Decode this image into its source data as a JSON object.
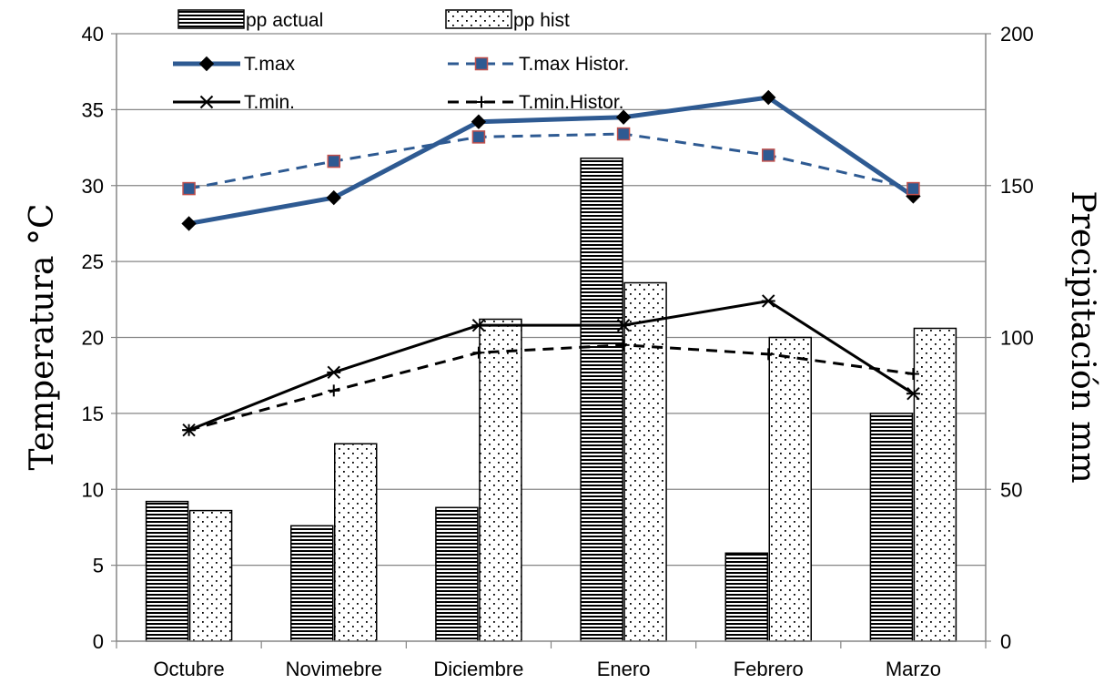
{
  "chart_data": {
    "type": "bar",
    "categories": [
      "Octubre",
      "Novimebre",
      "Diciembre",
      "Enero",
      "Febrero",
      "Marzo"
    ],
    "bar_series": [
      {
        "name": "pp actual",
        "axis": "right",
        "pattern": "horizontal-lines",
        "values": [
          46,
          38,
          44,
          159,
          29,
          75
        ]
      },
      {
        "name": "pp hist",
        "axis": "right",
        "pattern": "dots",
        "values": [
          43,
          65,
          106,
          118,
          100,
          103
        ]
      }
    ],
    "line_series": [
      {
        "name": "T.max",
        "axis": "left",
        "color": "#2e5a92",
        "style": "solid-thick",
        "marker": "diamond",
        "values": [
          27.5,
          29.2,
          34.2,
          34.5,
          35.8,
          29.3
        ]
      },
      {
        "name": "T.max Histor.",
        "axis": "left",
        "color": "#2e5a92",
        "style": "dashed",
        "marker": "square",
        "values": [
          29.8,
          31.6,
          33.2,
          33.4,
          32.0,
          29.8
        ]
      },
      {
        "name": "T.min.",
        "axis": "left",
        "color": "#000000",
        "style": "solid",
        "marker": "asterisk",
        "values": [
          13.9,
          17.7,
          20.8,
          20.8,
          22.4,
          16.3
        ]
      },
      {
        "name": "T.min.Histor.",
        "axis": "left",
        "color": "#000000",
        "style": "dashed",
        "marker": "plus",
        "values": [
          13.9,
          16.5,
          19.0,
          19.5,
          18.9,
          17.6
        ]
      }
    ],
    "ylabel": "Temperatura °C",
    "y2label": "Precipitación mm",
    "ylim": [
      0,
      40
    ],
    "y2lim": [
      0,
      200
    ],
    "yticks": [
      "0",
      "5",
      "10",
      "15",
      "20",
      "25",
      "30",
      "35",
      "40"
    ],
    "y2ticks": [
      "0",
      "50",
      "100",
      "150",
      "200"
    ],
    "grid": true,
    "legend_position": "top"
  }
}
